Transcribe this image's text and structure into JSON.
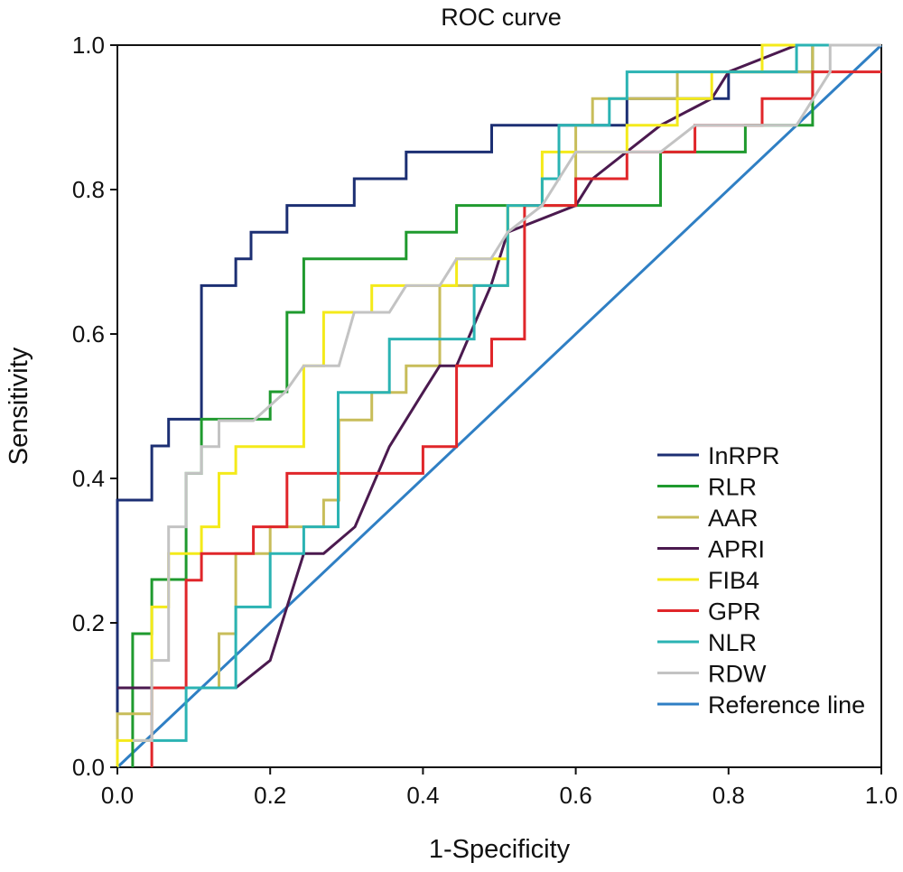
{
  "chart_data": {
    "type": "line",
    "title": "ROC curve",
    "xlabel": "1-Specificity",
    "ylabel": "Sensitivity",
    "xlim": [
      0,
      1
    ],
    "ylim": [
      0,
      1
    ],
    "xticks": [
      "0.0",
      "0.2",
      "0.4",
      "0.6",
      "0.8",
      "1.0"
    ],
    "yticks": [
      "0.0",
      "0.2",
      "0.4",
      "0.6",
      "0.8",
      "1.0"
    ],
    "grid": false,
    "legend_position": "bottom-right",
    "series": [
      {
        "name": "InRPR",
        "color": "#1c2f73",
        "x": [
          0,
          0,
          0.045,
          0.045,
          0.067,
          0.067,
          0.11,
          0.11,
          0.155,
          0.155,
          0.175,
          0.175,
          0.222,
          0.222,
          0.31,
          0.31,
          0.378,
          0.378,
          0.49,
          0.49,
          0.667,
          0.667,
          0.8,
          0.8,
          0.822,
          0.822,
          0.91,
          0.91,
          1
        ],
        "y": [
          0,
          0.37,
          0.37,
          0.445,
          0.445,
          0.482,
          0.482,
          0.667,
          0.667,
          0.704,
          0.704,
          0.741,
          0.741,
          0.778,
          0.778,
          0.815,
          0.815,
          0.852,
          0.852,
          0.889,
          0.889,
          0.926,
          0.926,
          0.963,
          0.963,
          0.963,
          0.963,
          1,
          1
        ]
      },
      {
        "name": "RLR",
        "color": "#1f9a2e",
        "x": [
          0.02,
          0.02,
          0.045,
          0.045,
          0.09,
          0.09,
          0.11,
          0.11,
          0.155,
          0.155,
          0.2,
          0.2,
          0.222,
          0.222,
          0.244,
          0.244,
          0.378,
          0.378,
          0.444,
          0.444,
          0.49,
          0.49,
          0.711,
          0.711,
          0.822,
          0.822,
          0.91,
          0.91,
          1
        ],
        "y": [
          0,
          0.185,
          0.185,
          0.26,
          0.26,
          0.407,
          0.407,
          0.482,
          0.482,
          0.482,
          0.482,
          0.52,
          0.52,
          0.63,
          0.63,
          0.704,
          0.704,
          0.741,
          0.741,
          0.778,
          0.778,
          0.778,
          0.778,
          0.852,
          0.852,
          0.889,
          0.889,
          1,
          1
        ]
      },
      {
        "name": "AAR",
        "color": "#c8bd5a",
        "x": [
          0,
          0,
          0.045,
          0.045,
          0.09,
          0.09,
          0.133,
          0.133,
          0.155,
          0.155,
          0.2,
          0.2,
          0.27,
          0.27,
          0.29,
          0.29,
          0.333,
          0.333,
          0.378,
          0.378,
          0.422,
          0.422,
          0.511,
          0.511,
          0.6,
          0.6,
          0.622,
          0.622,
          0.733,
          0.733,
          0.91,
          0.91,
          1
        ],
        "y": [
          0,
          0.074,
          0.074,
          0.11,
          0.11,
          0.11,
          0.11,
          0.185,
          0.185,
          0.296,
          0.296,
          0.333,
          0.333,
          0.37,
          0.37,
          0.481,
          0.481,
          0.519,
          0.519,
          0.556,
          0.556,
          0.667,
          0.667,
          0.778,
          0.778,
          0.889,
          0.889,
          0.926,
          0.926,
          0.963,
          0.963,
          1,
          1
        ]
      },
      {
        "name": "APRI",
        "color": "#4b1a4f",
        "x": [
          0,
          0.045,
          0.045,
          0.155,
          0.155,
          0.2,
          0.2,
          0.222,
          0.222,
          0.244,
          0.244,
          0.27,
          0.27,
          0.311,
          0.311,
          0.356,
          0.356,
          0.4,
          0.4,
          0.422,
          0.422,
          0.444,
          0.444,
          0.489,
          0.489,
          0.511,
          0.511,
          0.6,
          0.6,
          0.622,
          0.622,
          0.711,
          0.711,
          0.778,
          0.778,
          0.8,
          0.8,
          0.889,
          0.889,
          1
        ],
        "y": [
          0.11,
          0.11,
          0.11,
          0.11,
          0.11,
          0.148,
          0.148,
          0.222,
          0.222,
          0.296,
          0.296,
          0.296,
          0.296,
          0.333,
          0.333,
          0.444,
          0.444,
          0.519,
          0.519,
          0.556,
          0.556,
          0.556,
          0.556,
          0.667,
          0.667,
          0.741,
          0.741,
          0.778,
          0.778,
          0.815,
          0.815,
          0.889,
          0.889,
          0.926,
          0.926,
          0.963,
          0.963,
          1,
          1,
          1
        ]
      },
      {
        "name": "FIB4",
        "color": "#f4ea1a",
        "x": [
          0,
          0,
          0.045,
          0.045,
          0.067,
          0.067,
          0.11,
          0.11,
          0.133,
          0.133,
          0.155,
          0.155,
          0.244,
          0.244,
          0.27,
          0.27,
          0.333,
          0.333,
          0.378,
          0.378,
          0.444,
          0.444,
          0.511,
          0.511,
          0.556,
          0.556,
          0.667,
          0.667,
          0.733,
          0.733,
          0.778,
          0.778,
          0.844,
          0.844,
          0.91,
          0.91,
          1
        ],
        "y": [
          0,
          0.037,
          0.037,
          0.222,
          0.222,
          0.296,
          0.296,
          0.333,
          0.333,
          0.407,
          0.407,
          0.444,
          0.444,
          0.556,
          0.556,
          0.63,
          0.63,
          0.667,
          0.667,
          0.667,
          0.667,
          0.704,
          0.704,
          0.778,
          0.778,
          0.852,
          0.852,
          0.889,
          0.889,
          0.926,
          0.926,
          0.963,
          0.963,
          1,
          1,
          1,
          1
        ]
      },
      {
        "name": "GPR",
        "color": "#e0262a",
        "x": [
          0.045,
          0.045,
          0.09,
          0.09,
          0.11,
          0.11,
          0.178,
          0.178,
          0.222,
          0.222,
          0.4,
          0.4,
          0.444,
          0.444,
          0.49,
          0.49,
          0.533,
          0.533,
          0.6,
          0.6,
          0.667,
          0.667,
          0.756,
          0.756,
          0.844,
          0.844,
          0.91,
          0.91,
          1
        ],
        "y": [
          0,
          0.11,
          0.11,
          0.259,
          0.259,
          0.296,
          0.296,
          0.333,
          0.333,
          0.407,
          0.407,
          0.444,
          0.444,
          0.556,
          0.556,
          0.593,
          0.593,
          0.778,
          0.778,
          0.815,
          0.815,
          0.852,
          0.852,
          0.889,
          0.889,
          0.926,
          0.926,
          0.963,
          0.963
        ]
      },
      {
        "name": "NLR",
        "color": "#2bb3b3",
        "x": [
          0.045,
          0.09,
          0.09,
          0.11,
          0.11,
          0.155,
          0.155,
          0.2,
          0.2,
          0.244,
          0.244,
          0.289,
          0.289,
          0.356,
          0.356,
          0.467,
          0.467,
          0.511,
          0.511,
          0.556,
          0.556,
          0.578,
          0.578,
          0.644,
          0.644,
          0.667,
          0.667,
          0.711,
          0.711,
          0.889,
          0.889,
          1
        ],
        "y": [
          0.037,
          0.037,
          0.11,
          0.11,
          0.11,
          0.11,
          0.222,
          0.222,
          0.296,
          0.296,
          0.333,
          0.333,
          0.519,
          0.519,
          0.593,
          0.593,
          0.667,
          0.667,
          0.778,
          0.778,
          0.815,
          0.815,
          0.889,
          0.889,
          0.926,
          0.926,
          0.963,
          0.963,
          0.963,
          0.963,
          1,
          1
        ]
      },
      {
        "name": "RDW",
        "color": "#c3c3c3",
        "x": [
          0.02,
          0.045,
          0.045,
          0.067,
          0.067,
          0.09,
          0.09,
          0.11,
          0.11,
          0.133,
          0.133,
          0.178,
          0.22,
          0.244,
          0.29,
          0.31,
          0.356,
          0.378,
          0.422,
          0.444,
          0.489,
          0.511,
          0.556,
          0.578,
          0.6,
          0.711,
          0.756,
          0.822,
          0.889,
          0.911,
          0.933,
          0.933,
          1
        ],
        "y": [
          0.037,
          0.037,
          0.148,
          0.148,
          0.333,
          0.333,
          0.407,
          0.407,
          0.444,
          0.444,
          0.48,
          0.48,
          0.52,
          0.556,
          0.556,
          0.63,
          0.63,
          0.667,
          0.667,
          0.704,
          0.704,
          0.741,
          0.778,
          0.815,
          0.852,
          0.852,
          0.889,
          0.889,
          0.889,
          0.926,
          0.963,
          1,
          1
        ]
      },
      {
        "name": "Reference line",
        "color": "#2f7fc4",
        "x": [
          0,
          1
        ],
        "y": [
          0,
          1
        ]
      }
    ]
  }
}
